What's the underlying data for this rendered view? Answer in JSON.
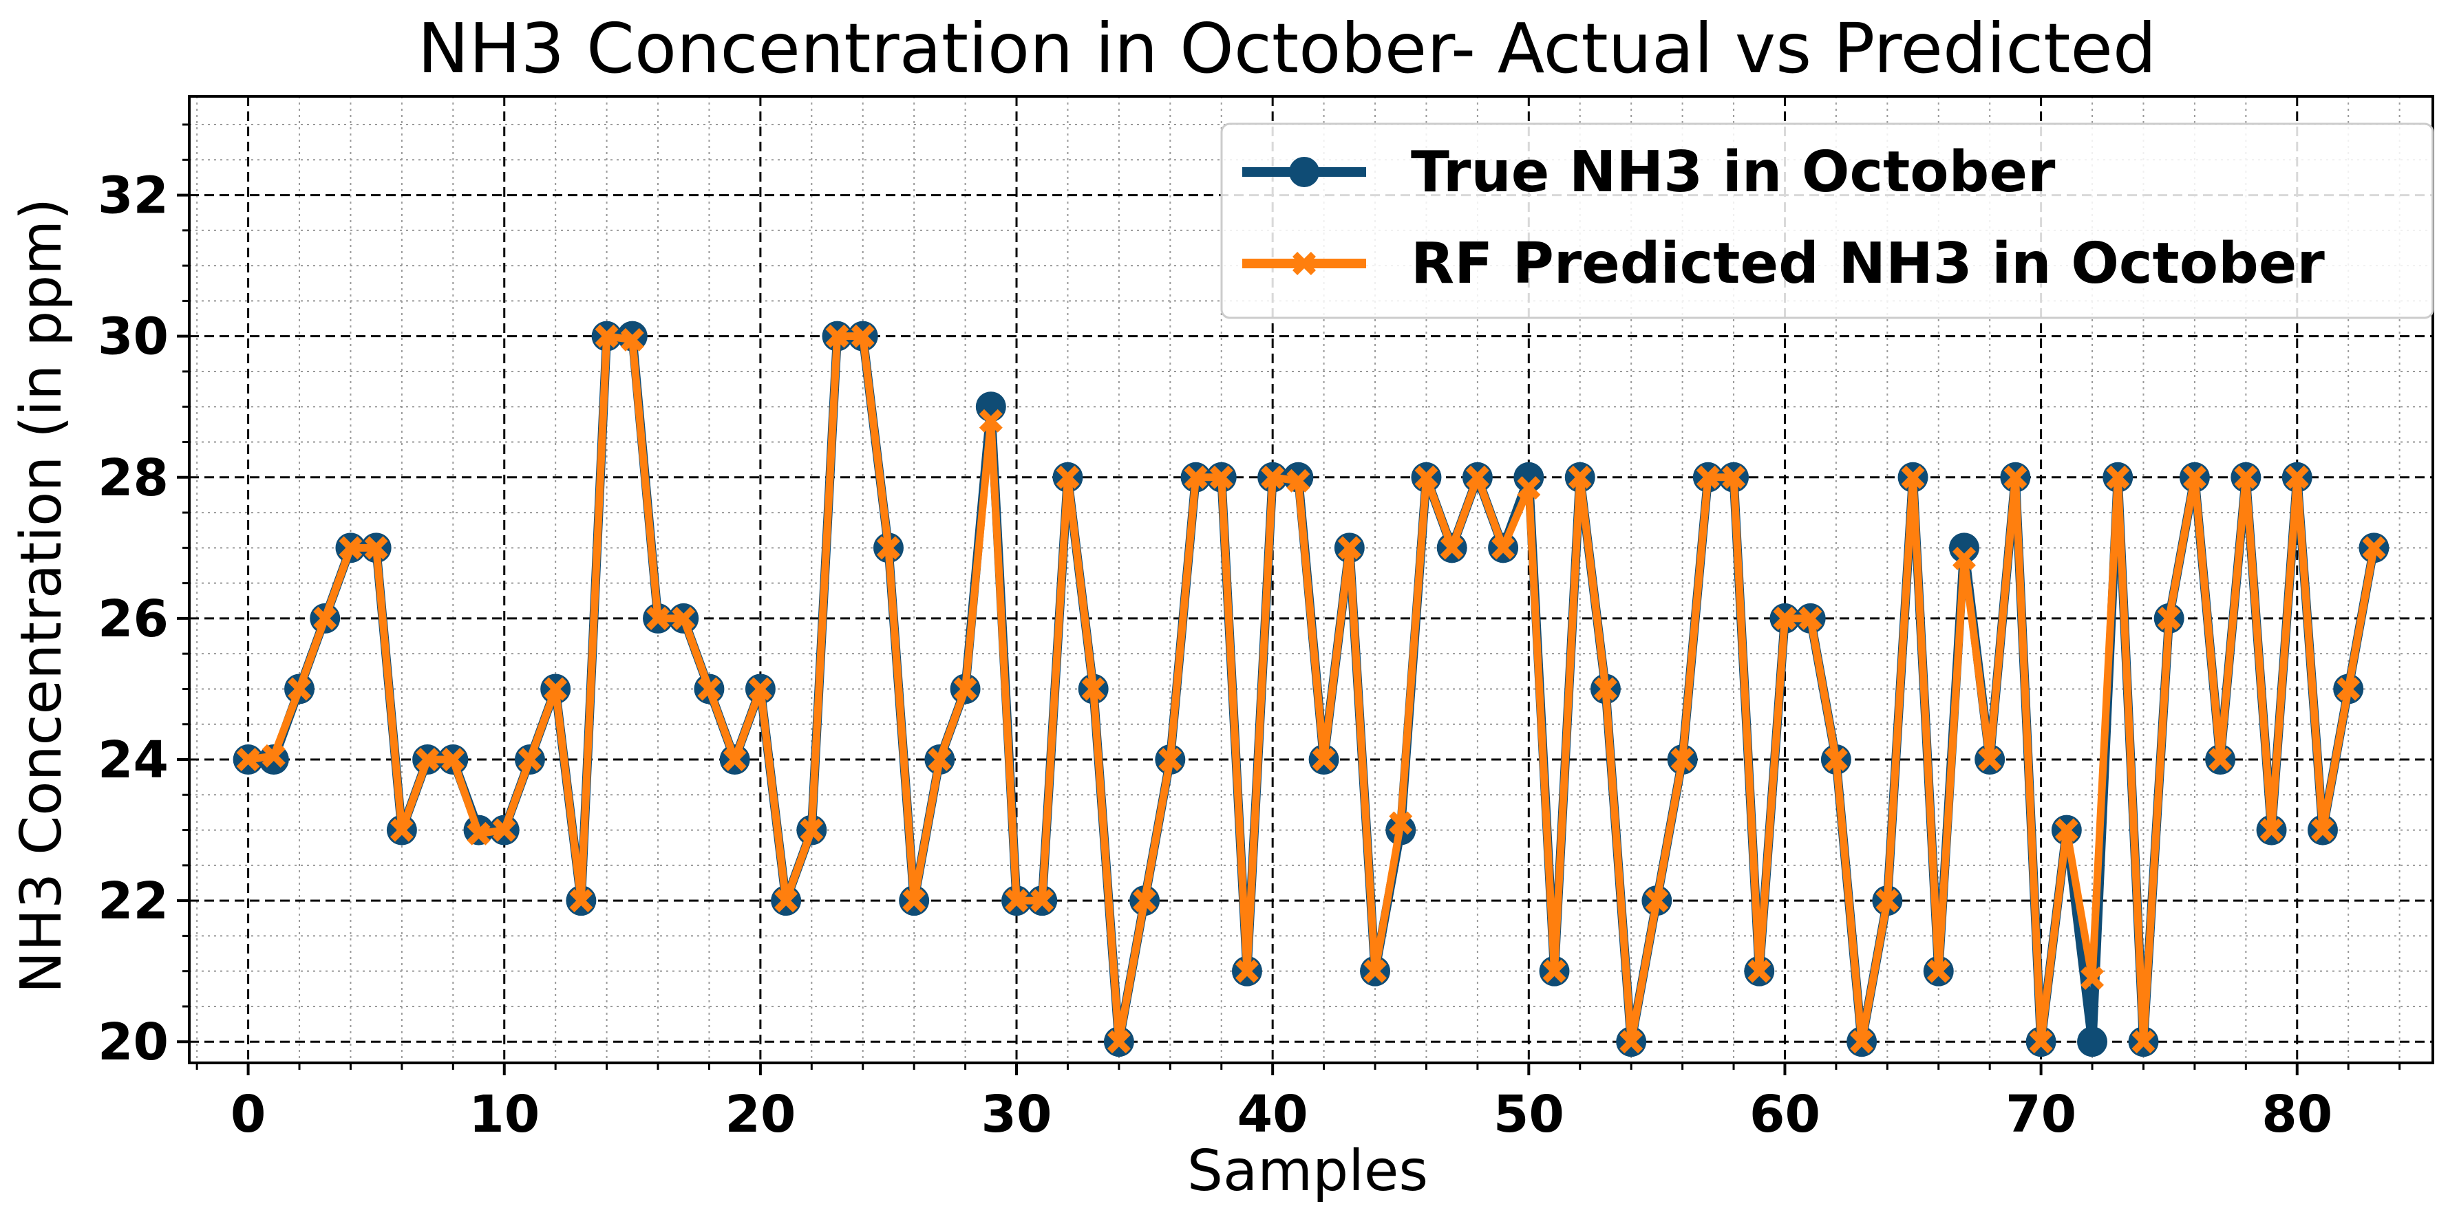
{
  "colors": {
    "true_series": "#0f4c75",
    "pred_series": "#ff7f0e",
    "major_grid": "#000000",
    "minor_grid": "#9a9a9a"
  },
  "chart_data": {
    "type": "line",
    "title": "NH3 Concentration in October- Actual vs Predicted",
    "xlabel": "Samples",
    "ylabel": "NH3 Concentration (in ppm)",
    "xlim": [
      -2.3,
      85.3
    ],
    "ylim": [
      19.7,
      33.4
    ],
    "xticks": [
      0,
      10,
      20,
      30,
      40,
      50,
      60,
      70,
      80
    ],
    "yticks": [
      20,
      22,
      24,
      26,
      28,
      30,
      32
    ],
    "grid": true,
    "legend_position": "top-right",
    "x": [
      0,
      1,
      2,
      3,
      4,
      5,
      6,
      7,
      8,
      9,
      10,
      11,
      12,
      13,
      14,
      15,
      16,
      17,
      18,
      19,
      20,
      21,
      22,
      23,
      24,
      25,
      26,
      27,
      28,
      29,
      30,
      31,
      32,
      33,
      34,
      35,
      36,
      37,
      38,
      39,
      40,
      41,
      42,
      43,
      44,
      45,
      46,
      47,
      48,
      49,
      50,
      51,
      52,
      53,
      54,
      55,
      56,
      57,
      58,
      59,
      60,
      61,
      62,
      63,
      64,
      65,
      66,
      67,
      68,
      69,
      70,
      71,
      72,
      73,
      74,
      75,
      76,
      77,
      78,
      79,
      80,
      81,
      82,
      83
    ],
    "series": [
      {
        "name": "True NH3 in October",
        "marker": "circle",
        "values": [
          24,
          24,
          25,
          26,
          27,
          27,
          23,
          24,
          24,
          23,
          23,
          24,
          25,
          22,
          30,
          30,
          26,
          26,
          25,
          24,
          25,
          22,
          23,
          30,
          30,
          27,
          22,
          24,
          25,
          29,
          22,
          22,
          28,
          25,
          20,
          22,
          24,
          28,
          28,
          21,
          28,
          28,
          24,
          27,
          21,
          23,
          28,
          27,
          28,
          27,
          28,
          21,
          28,
          25,
          20,
          22,
          24,
          28,
          28,
          21,
          26,
          26,
          24,
          20,
          22,
          28,
          21,
          27,
          24,
          28,
          20,
          23,
          20,
          28,
          20,
          26,
          28,
          24,
          28,
          23,
          28,
          23,
          25,
          27
        ]
      },
      {
        "name": "RF Predicted NH3 in October",
        "marker": "x",
        "values": [
          24,
          24.05,
          25,
          26,
          27,
          27,
          23,
          24,
          24,
          22.95,
          23,
          24,
          25,
          22,
          30,
          29.95,
          26,
          26,
          25,
          24,
          25,
          22,
          23,
          30,
          30,
          27,
          22,
          24,
          25,
          28.8,
          22,
          22,
          28,
          25,
          20,
          22,
          24,
          28,
          28,
          21,
          28,
          27.95,
          24,
          27,
          21,
          23.1,
          28,
          27,
          28,
          27,
          27.85,
          21,
          28,
          25,
          20,
          22,
          24,
          28,
          28,
          21,
          26,
          26,
          24,
          20,
          22,
          28,
          21,
          26.85,
          24,
          28,
          20,
          23,
          20.9,
          28,
          20,
          26,
          28,
          24,
          28,
          23,
          28,
          23,
          25,
          27
        ]
      }
    ]
  }
}
